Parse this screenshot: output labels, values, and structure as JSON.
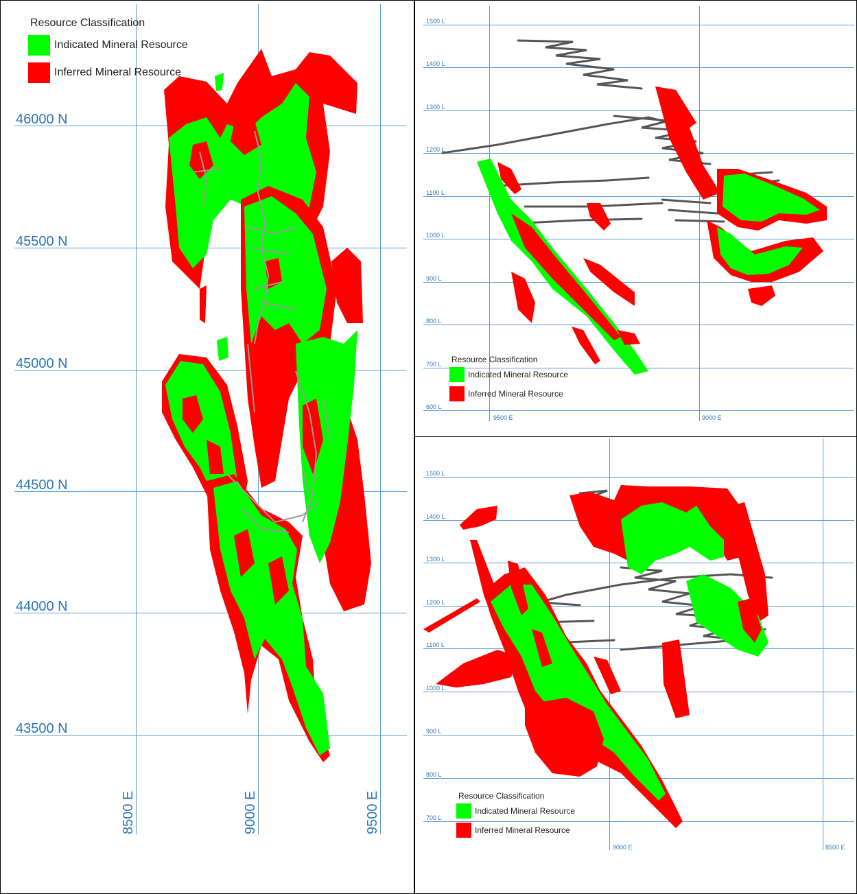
{
  "colors": {
    "indicated": "#00ff00",
    "inferred": "#ff0000",
    "grid": "#5b9bd5",
    "label": "#2e75b6",
    "development": "#9a9a9a"
  },
  "legend": {
    "title": "Resource Classification",
    "indicated": "Indicated Mineral Resource",
    "inferred": "Inferred Mineral Resource"
  },
  "plan_view": {
    "northings": [
      "46000 N",
      "45500 N",
      "45000 N",
      "44500 N",
      "44000 N",
      "43500 N"
    ],
    "eastings": [
      "8500 E",
      "9000 E",
      "9500 E"
    ]
  },
  "section_ne": {
    "levels": [
      "1500 L",
      "1400 L",
      "1300 L",
      "1200 L",
      "1100 L",
      "1000 L",
      "900 L",
      "800 L",
      "700 L",
      "600 L"
    ],
    "eastings": [
      "9500 E",
      "9000 E"
    ]
  },
  "section_se": {
    "levels": [
      "1500 L",
      "1400 L",
      "1300 L",
      "1200 L",
      "1100 L",
      "1000 L",
      "900 L",
      "800 L",
      "700 L"
    ],
    "eastings": [
      "9000 E",
      "8500 E"
    ]
  }
}
